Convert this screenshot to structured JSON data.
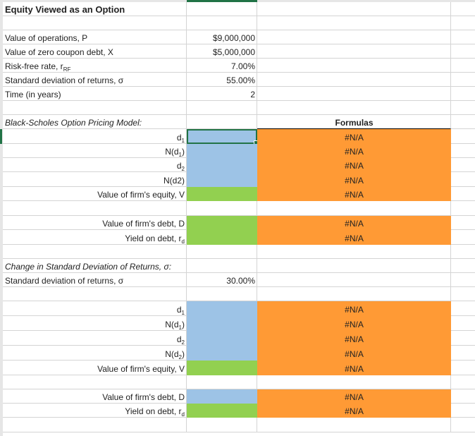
{
  "sheet": {
    "title": "Equity Viewed as an Option",
    "colors": {
      "blue": "#9dc3e6",
      "green": "#92d050",
      "orange": "#ff9a35",
      "selection": "#217346"
    },
    "rows": [
      {
        "a": "Equity Viewed as an Option",
        "style": "title"
      },
      {},
      {
        "a": "Value of operations, P",
        "b": "$9,000,000"
      },
      {
        "a": "Value of zero coupon debt, X",
        "b": "$5,000,000"
      },
      {
        "a": "Risk-free rate, r",
        "a_sub": "RF",
        "b": "7.00%"
      },
      {
        "a": "Standard deviation of returns, σ",
        "b": "55.00%"
      },
      {
        "a": "Time (in years)",
        "b": "2"
      },
      {},
      {
        "a": "Black-Scholes Option Pricing Model:",
        "style": "ital",
        "c": "Formulas",
        "c_style": "header"
      },
      {
        "a": "d",
        "a_sub": "1",
        "align": "right",
        "b_fill": "blue",
        "selected": true,
        "c": "#N/A",
        "c_fill": "orange"
      },
      {
        "a": "N(d",
        "a_sub": "1",
        "a_end": ")",
        "align": "right",
        "b_fill": "blue",
        "c": "#N/A",
        "c_fill": "orange"
      },
      {
        "a": "d",
        "a_sub": "2",
        "align": "right",
        "b_fill": "blue",
        "c": "#N/A",
        "c_fill": "orange"
      },
      {
        "a": "N(d2)",
        "align": "right",
        "b_fill": "blue",
        "c": "#N/A",
        "c_fill": "orange"
      },
      {
        "a": "Value of firm's equity, V",
        "align": "right",
        "b_fill": "green",
        "c": "#N/A",
        "c_fill": "orange"
      },
      {},
      {
        "a": "Value of firm's debt, D",
        "align": "right",
        "b_fill": "green",
        "c": "#N/A",
        "c_fill": "orange"
      },
      {
        "a": "Yield on debt, r",
        "a_sub": "d",
        "align": "right",
        "b_fill": "green",
        "c": "#N/A",
        "c_fill": "orange"
      },
      {},
      {
        "a": "Change in Standard Deviation of Returns, σ:",
        "style": "ital"
      },
      {
        "a": "Standard deviation of returns, σ",
        "b": "30.00%"
      },
      {},
      {
        "a": "d",
        "a_sub": "1",
        "align": "right",
        "b_fill": "blue",
        "c": "#N/A",
        "c_fill": "orange"
      },
      {
        "a": "N(d",
        "a_sub": "1",
        "a_end": ")",
        "align": "right",
        "b_fill": "blue",
        "c": "#N/A",
        "c_fill": "orange"
      },
      {
        "a": "d",
        "a_sub": "2",
        "align": "right",
        "b_fill": "blue",
        "c": "#N/A",
        "c_fill": "orange"
      },
      {
        "a": "N(d",
        "a_sub": "2",
        "a_end": ")",
        "align": "right",
        "b_fill": "blue",
        "c": "#N/A",
        "c_fill": "orange"
      },
      {
        "a": "Value of firm's equity, V",
        "align": "right",
        "b_fill": "green",
        "c": "#N/A",
        "c_fill": "orange"
      },
      {},
      {
        "a": "Value of firm's debt, D",
        "align": "right",
        "b_fill": "blue",
        "c": "#N/A",
        "c_fill": "orange"
      },
      {
        "a": "Yield on debt, r",
        "a_sub": "d",
        "align": "right",
        "b_fill": "green",
        "c": "#N/A",
        "c_fill": "orange"
      },
      {}
    ]
  }
}
